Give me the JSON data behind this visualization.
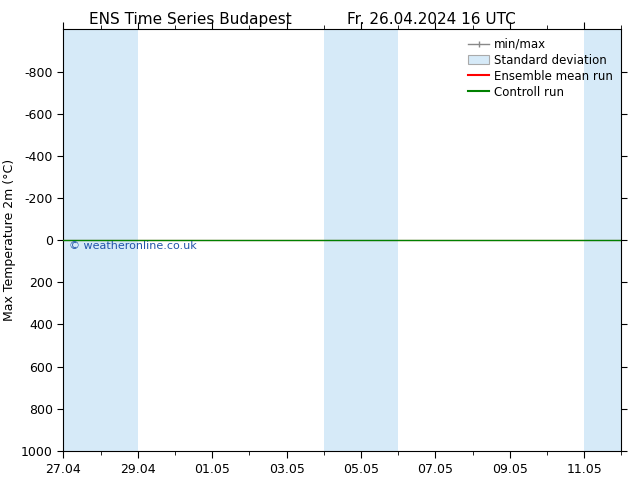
{
  "title_left": "ENS Time Series Budapest",
  "title_right": "Fr. 26.04.2024 16 UTC",
  "ylabel": "Max Temperature 2m (°C)",
  "ylim_top": -1000,
  "ylim_bottom": 1000,
  "yticks": [
    -800,
    -600,
    -400,
    -200,
    0,
    200,
    400,
    600,
    800,
    1000
  ],
  "xtick_labels": [
    "27.04",
    "29.04",
    "01.05",
    "03.05",
    "05.05",
    "07.05",
    "09.05",
    "11.05"
  ],
  "xtick_days": [
    0,
    2,
    4,
    6,
    8,
    10,
    12,
    14
  ],
  "total_days": 15,
  "shaded_bands_days": [
    [
      0,
      1
    ],
    [
      1,
      2
    ],
    [
      7,
      8
    ],
    [
      8,
      9
    ],
    [
      14,
      15
    ]
  ],
  "band_color": "#d6eaf8",
  "green_line_y": 0,
  "red_line_y": 0,
  "line_colors": [
    "#ff0000",
    "#008000"
  ],
  "legend_labels": [
    "min/max",
    "Standard deviation",
    "Ensemble mean run",
    "Controll run"
  ],
  "watermark": "© weatheronline.co.uk",
  "watermark_color": "#2255aa",
  "bg_color": "#ffffff",
  "font_size": 9,
  "title_font_size": 11
}
